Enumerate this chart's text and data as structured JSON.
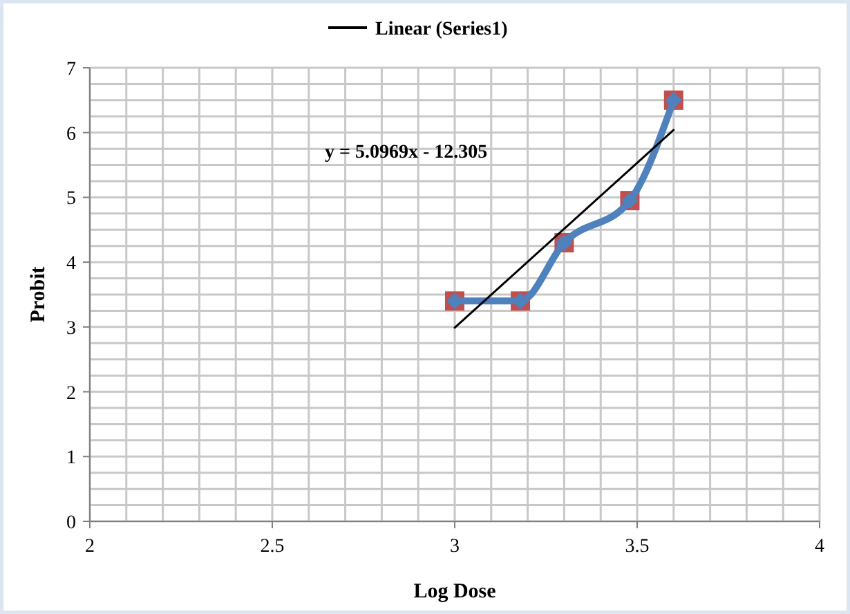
{
  "chart_data": {
    "type": "scatter",
    "xlabel": "Log Dose",
    "ylabel": "Probit",
    "xlim": [
      2,
      4
    ],
    "ylim": [
      0,
      7
    ],
    "xticks": [
      2,
      {
        "value": 2.1,
        "label": null
      },
      {
        "value": 2.2,
        "label": null
      },
      {
        "value": 2.3,
        "label": null
      },
      {
        "value": 2.4,
        "label": null
      },
      2.5,
      {
        "value": 2.6,
        "label": null
      },
      {
        "value": 2.7,
        "label": null
      },
      {
        "value": 2.8,
        "label": null
      },
      {
        "value": 2.9,
        "label": null
      },
      3,
      {
        "value": 3.1,
        "label": null
      },
      {
        "value": 3.2,
        "label": null
      },
      {
        "value": 3.3,
        "label": null
      },
      {
        "value": 3.4,
        "label": null
      },
      3.5,
      {
        "value": 3.6,
        "label": null
      },
      {
        "value": 3.7,
        "label": null
      },
      {
        "value": 3.8,
        "label": null
      },
      {
        "value": 3.9,
        "label": null
      },
      4
    ],
    "yticks": [
      0,
      {
        "value": 0.25,
        "label": null
      },
      {
        "value": 0.5,
        "label": null
      },
      {
        "value": 0.75,
        "label": null
      },
      1,
      {
        "value": 1.25,
        "label": null
      },
      {
        "value": 1.5,
        "label": null
      },
      {
        "value": 1.75,
        "label": null
      },
      2,
      {
        "value": 2.25,
        "label": null
      },
      {
        "value": 2.5,
        "label": null
      },
      {
        "value": 2.75,
        "label": null
      },
      3,
      {
        "value": 3.25,
        "label": null
      },
      {
        "value": 3.5,
        "label": null
      },
      {
        "value": 3.75,
        "label": null
      },
      4,
      {
        "value": 4.25,
        "label": null
      },
      {
        "value": 4.5,
        "label": null
      },
      {
        "value": 4.75,
        "label": null
      },
      5,
      {
        "value": 5.25,
        "label": null
      },
      {
        "value": 5.5,
        "label": null
      },
      {
        "value": 5.75,
        "label": null
      },
      6,
      {
        "value": 6.25,
        "label": null
      },
      {
        "value": 6.5,
        "label": null
      },
      {
        "value": 6.75,
        "label": null
      },
      7
    ],
    "grid": true,
    "legend": "top",
    "annotations": [
      "y = 5.0969x - 12.305"
    ],
    "series": [
      {
        "color": "#c0504d",
        "marker": "square",
        "x": [
          3,
          3.18,
          3.3,
          3.48,
          3.6
        ],
        "values": [
          3.4,
          3.4,
          4.3,
          4.95,
          6.5
        ]
      },
      {
        "type": "line",
        "color": "#4f81bd",
        "marker": "diamond",
        "x": [
          3,
          3.18,
          3.3,
          3.48,
          3.6
        ],
        "values": [
          3.4,
          3.4,
          4.3,
          4.95,
          6.5
        ]
      },
      {
        "type": "line",
        "name": "Linear (Series1)",
        "color": "#000000",
        "marker": "none",
        "x": [
          3,
          3.6
        ],
        "values": [
          2.99,
          6.04
        ]
      }
    ]
  }
}
